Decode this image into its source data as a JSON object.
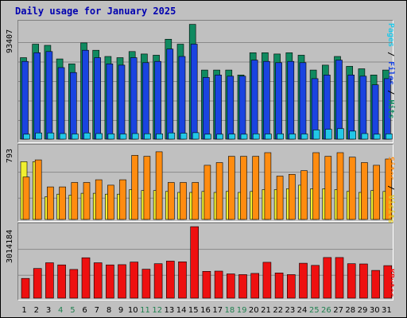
{
  "title": "Daily usage for January 2025",
  "colors": {
    "background": "#c0c0c0",
    "title": "#0000b0",
    "hits": "#108a60",
    "files": "#1a44e0",
    "pages": "#22c8e8",
    "visits": "#f0f030",
    "sites": "#ff8c10",
    "kbytes": "#ee1010",
    "weekend_label": "#208050",
    "gridline": "#8a8a8a"
  },
  "legend": {
    "hits_panel": [
      "Pages",
      "Files",
      "Hits"
    ],
    "visits_panel": [
      "Sites",
      "Visits"
    ],
    "kbytes_panel": [
      "KBytes"
    ]
  },
  "chart_data": [
    {
      "type": "bar",
      "panel": "hits",
      "ymax_label": "93407",
      "ylim": [
        0,
        93407
      ],
      "categories": [
        "1",
        "2",
        "3",
        "4",
        "5",
        "6",
        "7",
        "8",
        "9",
        "10",
        "11",
        "12",
        "13",
        "14",
        "15",
        "16",
        "17",
        "18",
        "19",
        "20",
        "21",
        "22",
        "23",
        "24",
        "25",
        "26",
        "27",
        "28",
        "29",
        "30",
        "31"
      ],
      "weekend_days": [
        "4",
        "5",
        "11",
        "12",
        "18",
        "19",
        "25",
        "26"
      ],
      "series": [
        {
          "name": "Hits",
          "values": [
            66000,
            77000,
            76000,
            65000,
            61000,
            78000,
            72000,
            67000,
            66000,
            71000,
            69000,
            68000,
            81000,
            77000,
            93000,
            56000,
            56000,
            56000,
            52000,
            70000,
            70000,
            69000,
            70000,
            68000,
            56000,
            60000,
            67000,
            59000,
            57000,
            52000,
            56000
          ]
        },
        {
          "name": "Files",
          "values": [
            63000,
            70000,
            71000,
            58000,
            54000,
            72000,
            66000,
            61000,
            60000,
            66000,
            62000,
            63000,
            73000,
            67000,
            77000,
            50000,
            52000,
            51000,
            51000,
            64000,
            63000,
            62000,
            63000,
            62000,
            49000,
            52000,
            64000,
            52000,
            51000,
            44000,
            49000
          ]
        },
        {
          "name": "Pages",
          "values": [
            4000,
            5000,
            5000,
            4500,
            4200,
            5000,
            4500,
            4300,
            4200,
            4500,
            4400,
            4300,
            5000,
            4800,
            5200,
            4000,
            4000,
            4100,
            4000,
            4300,
            4200,
            4300,
            4200,
            4200,
            7500,
            8000,
            8500,
            6500,
            4500,
            4000,
            4300
          ]
        }
      ]
    },
    {
      "type": "bar",
      "panel": "visits",
      "ymax_label": "793",
      "ylim": [
        0,
        793
      ],
      "categories": [
        "1",
        "2",
        "3",
        "4",
        "5",
        "6",
        "7",
        "8",
        "9",
        "10",
        "11",
        "12",
        "13",
        "14",
        "15",
        "16",
        "17",
        "18",
        "19",
        "20",
        "21",
        "22",
        "23",
        "24",
        "25",
        "26",
        "27",
        "28",
        "29",
        "30",
        "31"
      ],
      "series": [
        {
          "name": "Sites",
          "values": [
            470,
            660,
            360,
            360,
            410,
            410,
            440,
            380,
            440,
            710,
            700,
            750,
            410,
            410,
            410,
            600,
            630,
            700,
            700,
            700,
            740,
            480,
            500,
            540,
            740,
            700,
            740,
            690,
            630,
            600,
            670
          ]
        },
        {
          "name": "Visits",
          "values": [
            640,
            640,
            250,
            280,
            270,
            290,
            290,
            280,
            280,
            330,
            320,
            320,
            310,
            300,
            300,
            310,
            300,
            310,
            300,
            310,
            330,
            330,
            340,
            380,
            340,
            340,
            330,
            310,
            300,
            320,
            310
          ]
        }
      ]
    },
    {
      "type": "bar",
      "panel": "kbytes",
      "ymax_label": "3014184",
      "ylim": [
        0,
        3014184
      ],
      "categories": [
        "1",
        "2",
        "3",
        "4",
        "5",
        "6",
        "7",
        "8",
        "9",
        "10",
        "11",
        "12",
        "13",
        "14",
        "15",
        "16",
        "17",
        "18",
        "19",
        "20",
        "21",
        "22",
        "23",
        "24",
        "25",
        "26",
        "27",
        "28",
        "29",
        "30",
        "31"
      ],
      "series": [
        {
          "name": "KBytes",
          "values": [
            830000,
            1250000,
            1490000,
            1400000,
            1210000,
            1700000,
            1490000,
            1400000,
            1410000,
            1520000,
            1220000,
            1450000,
            1560000,
            1530000,
            3010000,
            1130000,
            1140000,
            1020000,
            990000,
            1040000,
            1510000,
            1060000,
            990000,
            1470000,
            1380000,
            1710000,
            1710000,
            1450000,
            1440000,
            1170000,
            1370000
          ]
        }
      ]
    }
  ],
  "day_labels": [
    "1",
    "2",
    "3",
    "4",
    "5",
    "6",
    "7",
    "8",
    "9",
    "10",
    "11",
    "12",
    "13",
    "14",
    "15",
    "16",
    "17",
    "18",
    "19",
    "20",
    "21",
    "22",
    "23",
    "24",
    "25",
    "26",
    "27",
    "28",
    "29",
    "30",
    "31"
  ]
}
